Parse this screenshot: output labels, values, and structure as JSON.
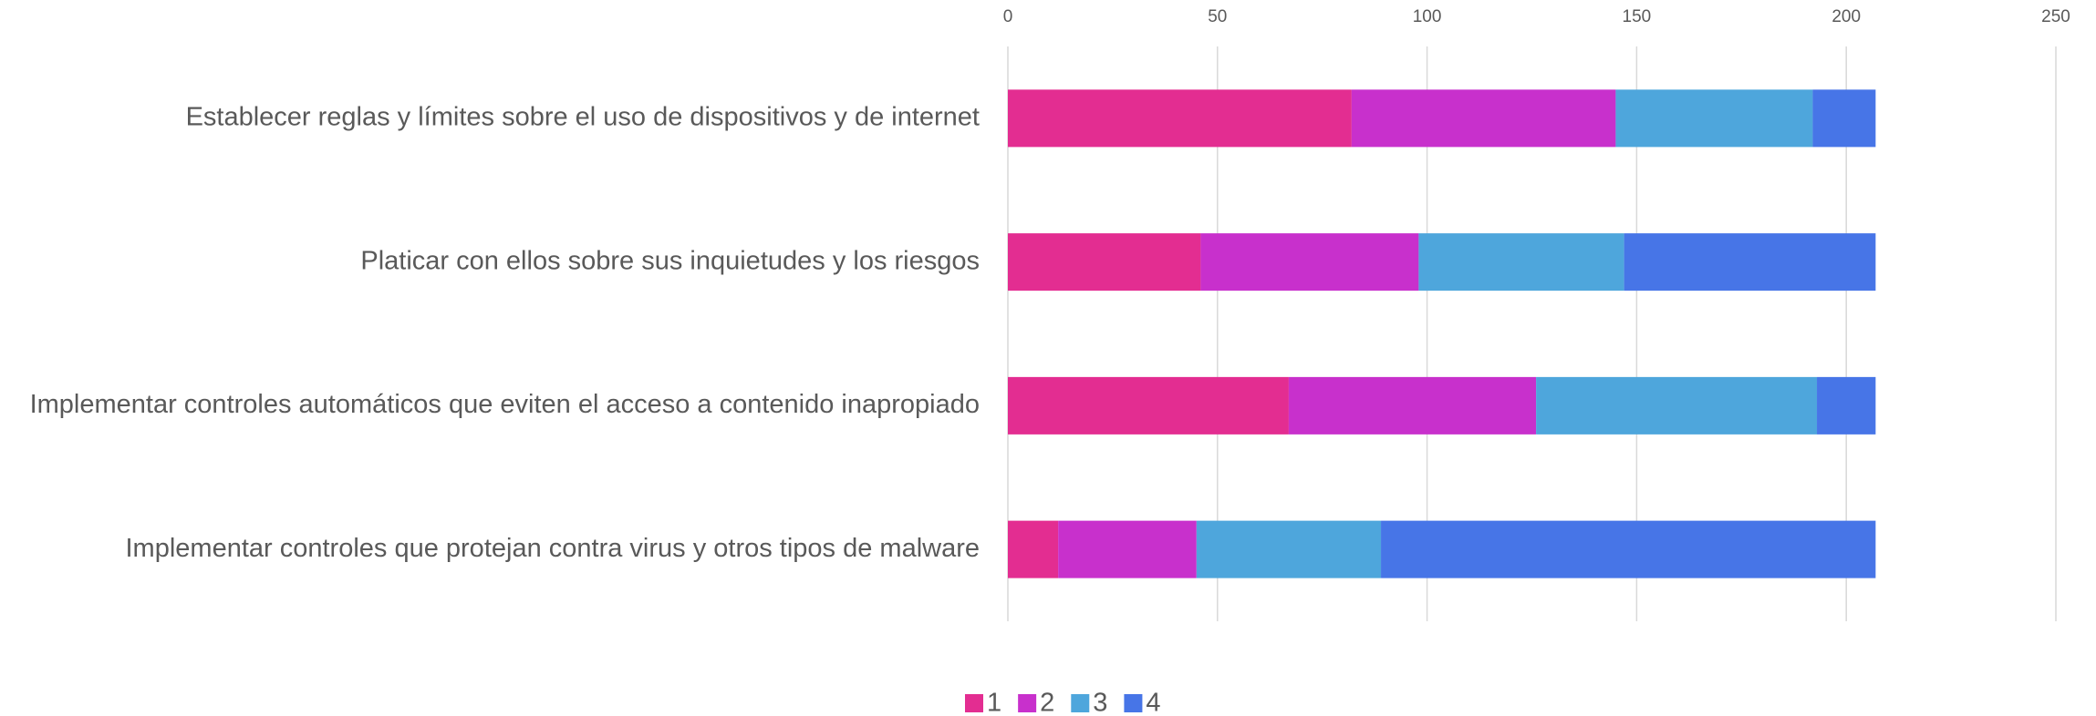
{
  "chart_data": {
    "type": "stacked_barh",
    "categories": [
      "Establecer reglas y límites sobre el uso de dispositivos y de internet",
      "Platicar con ellos sobre sus inquietudes y los riesgos",
      "Implementar controles automáticos que eviten el acceso a contenido inapropiado",
      "Implementar controles que protejan contra virus y otros tipos de malware"
    ],
    "series": [
      {
        "name": "1",
        "color": "#e32d91",
        "values": [
          82,
          46,
          67,
          12
        ]
      },
      {
        "name": "2",
        "color": "#c830cc",
        "values": [
          63,
          52,
          59,
          33
        ]
      },
      {
        "name": "3",
        "color": "#4ea6dc",
        "values": [
          47,
          49,
          67,
          44
        ]
      },
      {
        "name": "4",
        "color": "#4775e7",
        "values": [
          15,
          60,
          14,
          118
        ]
      }
    ],
    "xlim": [
      0,
      250
    ],
    "xticks": [
      0,
      50,
      100,
      150,
      200,
      250
    ],
    "grid": true,
    "legend": "bottom"
  }
}
